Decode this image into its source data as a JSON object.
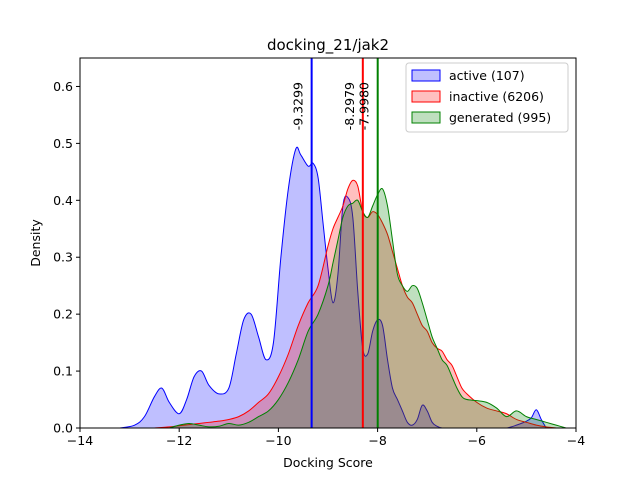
{
  "chart_data": {
    "type": "area",
    "title": "docking_21/jak2",
    "xlabel": "Docking Score",
    "ylabel": "Density",
    "xlim": [
      -14,
      -4
    ],
    "ylim": [
      0,
      0.65
    ],
    "xticks": [
      -14,
      -12,
      -10,
      -8,
      -6,
      -4
    ],
    "xtick_labels": [
      "−14",
      "−12",
      "−10",
      "−8",
      "−6",
      "−4"
    ],
    "yticks": [
      0.0,
      0.1,
      0.2,
      0.3,
      0.4,
      0.5,
      0.6
    ],
    "ytick_labels": [
      "0.0",
      "0.1",
      "0.2",
      "0.3",
      "0.4",
      "0.5",
      "0.6"
    ],
    "grid": false,
    "legend_position": "top-right",
    "series": [
      {
        "name": "active (107)",
        "color": "#0000ff",
        "fill": "#0000ff",
        "x": [
          -13.2,
          -12.9,
          -12.7,
          -12.5,
          -12.35,
          -12.2,
          -12.0,
          -11.85,
          -11.7,
          -11.55,
          -11.4,
          -11.2,
          -11.0,
          -10.85,
          -10.7,
          -10.55,
          -10.4,
          -10.25,
          -10.1,
          -9.95,
          -9.8,
          -9.65,
          -9.55,
          -9.4,
          -9.3,
          -9.2,
          -9.1,
          -9.0,
          -8.9,
          -8.8,
          -8.7,
          -8.6,
          -8.5,
          -8.4,
          -8.3,
          -8.2,
          -8.1,
          -8.0,
          -7.9,
          -7.8,
          -7.7,
          -7.6,
          -7.5,
          -7.4,
          -7.3,
          -7.2,
          -7.1,
          -7.0,
          -6.9,
          -6.8,
          -6.7,
          -6.6,
          -6.5,
          -6.4,
          -6.2,
          -6.0,
          -5.8,
          -5.6,
          -5.4,
          -5.2,
          -5.0,
          -4.9,
          -4.8,
          -4.7,
          -4.6
        ],
        "y": [
          0.0,
          0.005,
          0.02,
          0.055,
          0.07,
          0.045,
          0.025,
          0.05,
          0.09,
          0.1,
          0.075,
          0.06,
          0.07,
          0.13,
          0.19,
          0.2,
          0.16,
          0.12,
          0.15,
          0.3,
          0.42,
          0.49,
          0.48,
          0.46,
          0.465,
          0.44,
          0.36,
          0.28,
          0.22,
          0.27,
          0.39,
          0.405,
          0.37,
          0.24,
          0.14,
          0.13,
          0.17,
          0.19,
          0.18,
          0.12,
          0.07,
          0.05,
          0.03,
          0.01,
          0.005,
          0.015,
          0.04,
          0.03,
          0.01,
          0.003,
          0.0,
          0.0,
          0.0,
          0.0,
          0.0,
          0.0,
          0.0,
          0.0,
          0.0,
          0.005,
          0.012,
          0.018,
          0.032,
          0.015,
          0.0
        ]
      },
      {
        "name": "inactive (6206)",
        "color": "#ff0000",
        "fill": "#ff0000",
        "x": [
          -12.5,
          -12.2,
          -12.0,
          -11.8,
          -11.6,
          -11.4,
          -11.2,
          -11.0,
          -10.8,
          -10.6,
          -10.4,
          -10.2,
          -10.0,
          -9.8,
          -9.6,
          -9.4,
          -9.2,
          -9.0,
          -8.9,
          -8.8,
          -8.7,
          -8.6,
          -8.5,
          -8.4,
          -8.3,
          -8.2,
          -8.1,
          -8.0,
          -7.9,
          -7.8,
          -7.7,
          -7.6,
          -7.5,
          -7.4,
          -7.3,
          -7.2,
          -7.1,
          -7.0,
          -6.9,
          -6.8,
          -6.7,
          -6.6,
          -6.5,
          -6.4,
          -6.3,
          -6.2,
          -6.0,
          -5.8,
          -5.6,
          -5.4,
          -5.2,
          -5.0,
          -4.8,
          -4.6,
          -4.4
        ],
        "y": [
          0.0,
          0.002,
          0.004,
          0.006,
          0.008,
          0.01,
          0.012,
          0.015,
          0.02,
          0.03,
          0.045,
          0.06,
          0.09,
          0.13,
          0.18,
          0.22,
          0.25,
          0.32,
          0.35,
          0.37,
          0.39,
          0.42,
          0.435,
          0.425,
          0.38,
          0.37,
          0.38,
          0.375,
          0.36,
          0.34,
          0.31,
          0.28,
          0.25,
          0.23,
          0.22,
          0.2,
          0.18,
          0.17,
          0.15,
          0.14,
          0.135,
          0.12,
          0.11,
          0.09,
          0.07,
          0.06,
          0.045,
          0.035,
          0.03,
          0.025,
          0.015,
          0.01,
          0.005,
          0.002,
          0.0
        ]
      },
      {
        "name": "generated (995)",
        "color": "#008000",
        "fill": "#008000",
        "x": [
          -12.2,
          -12.0,
          -11.8,
          -11.6,
          -11.4,
          -11.2,
          -11.0,
          -10.8,
          -10.6,
          -10.4,
          -10.2,
          -10.0,
          -9.8,
          -9.6,
          -9.4,
          -9.2,
          -9.0,
          -8.9,
          -8.8,
          -8.7,
          -8.6,
          -8.5,
          -8.4,
          -8.3,
          -8.2,
          -8.1,
          -8.0,
          -7.9,
          -7.8,
          -7.7,
          -7.6,
          -7.5,
          -7.4,
          -7.3,
          -7.2,
          -7.1,
          -7.0,
          -6.9,
          -6.8,
          -6.7,
          -6.6,
          -6.5,
          -6.4,
          -6.3,
          -6.2,
          -6.0,
          -5.8,
          -5.6,
          -5.4,
          -5.2,
          -5.0,
          -4.8,
          -4.6,
          -4.4,
          -4.2
        ],
        "y": [
          0.0,
          0.005,
          0.008,
          0.005,
          0.002,
          0.003,
          0.008,
          0.005,
          0.01,
          0.02,
          0.03,
          0.05,
          0.08,
          0.12,
          0.17,
          0.2,
          0.25,
          0.29,
          0.33,
          0.37,
          0.39,
          0.395,
          0.4,
          0.38,
          0.37,
          0.39,
          0.41,
          0.42,
          0.39,
          0.33,
          0.27,
          0.25,
          0.24,
          0.25,
          0.245,
          0.22,
          0.19,
          0.16,
          0.14,
          0.12,
          0.11,
          0.09,
          0.07,
          0.055,
          0.05,
          0.048,
          0.045,
          0.035,
          0.02,
          0.03,
          0.02,
          0.015,
          0.01,
          0.005,
          0.0
        ]
      }
    ],
    "vlines": [
      {
        "x": -9.3299,
        "label": "-9.3299",
        "color": "#0000ff"
      },
      {
        "x": -8.2979,
        "label": "-8.2979",
        "color": "#ff0000"
      },
      {
        "x": -7.998,
        "label": "-7.9980",
        "color": "#008000"
      }
    ]
  }
}
